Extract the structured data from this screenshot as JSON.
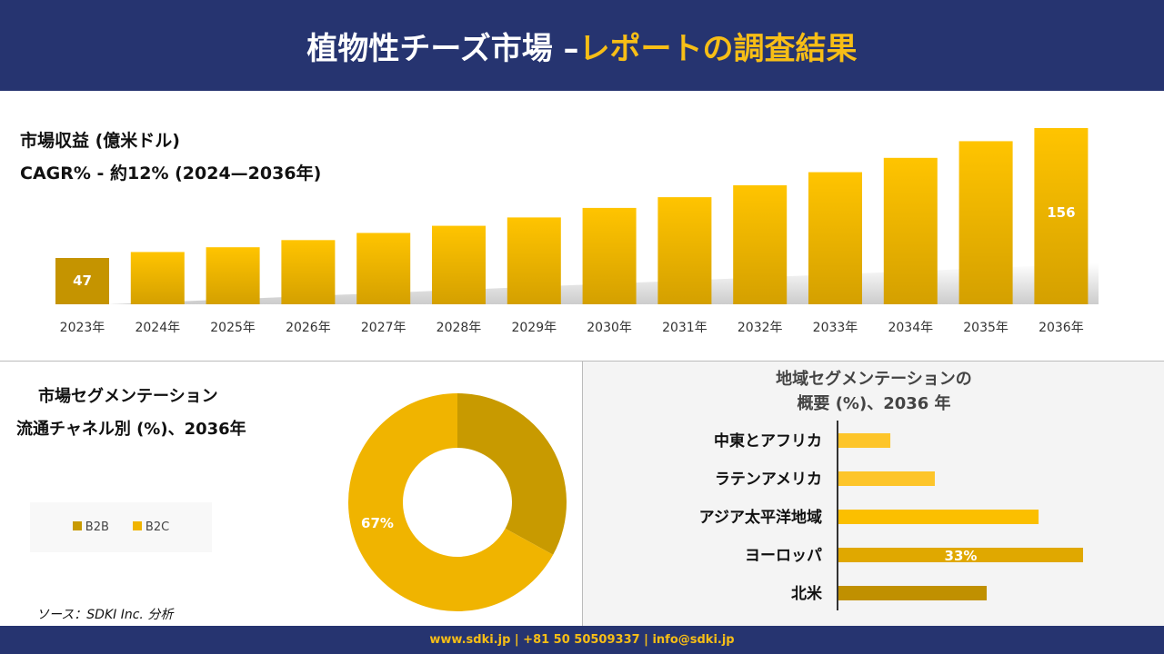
{
  "header": {
    "title_white": "植物性チーズ市場 –",
    "title_accent": "レポートの調査結果"
  },
  "footer": {
    "contact": "www.sdki.jp | +81 50 50509337 | info@sdki.jp"
  },
  "source": "ソース：SDKI Inc. 分析",
  "chart_data": [
    {
      "type": "bar",
      "title": "市場収益 (億米ドル)",
      "subtitle": "CAGR% - 約12% (2024—2036年)",
      "categories": [
        "2023年",
        "2024年",
        "2025年",
        "2026年",
        "2027年",
        "2028年",
        "2029年",
        "2030年",
        "2031年",
        "2032年",
        "2033年",
        "2034年",
        "2035年",
        "2036年"
      ],
      "values": [
        47,
        52,
        56,
        62,
        68,
        74,
        81,
        89,
        98,
        108,
        119,
        131,
        145,
        156
      ],
      "data_labels": {
        "0": "47",
        "13": "156"
      }
    },
    {
      "type": "pie",
      "title_line1": "市場セグメンテーション",
      "title_line2": "流通チャネル別 (%)、2036年",
      "categories": [
        "B2B",
        "B2C"
      ],
      "values": [
        33,
        67
      ],
      "colors": [
        "#c89a00",
        "#f0b400"
      ],
      "data_labels": {
        "1": "67%"
      },
      "legend": "left"
    },
    {
      "type": "bar",
      "orientation": "horizontal",
      "title_line1": "地域セグメンテーションの",
      "title_line2": "概要 (%)、2036 年",
      "categories": [
        "中東とアフリカ",
        "ラテンアメリカ",
        "アジア太平洋地域",
        "ヨーロッパ",
        "北米"
      ],
      "values": [
        7,
        13,
        27,
        33,
        20
      ],
      "colors": [
        "#fdc52a",
        "#fdc52a",
        "#fbbf00",
        "#e0a800",
        "#c09000"
      ],
      "data_labels": {
        "3": "33%"
      }
    }
  ]
}
